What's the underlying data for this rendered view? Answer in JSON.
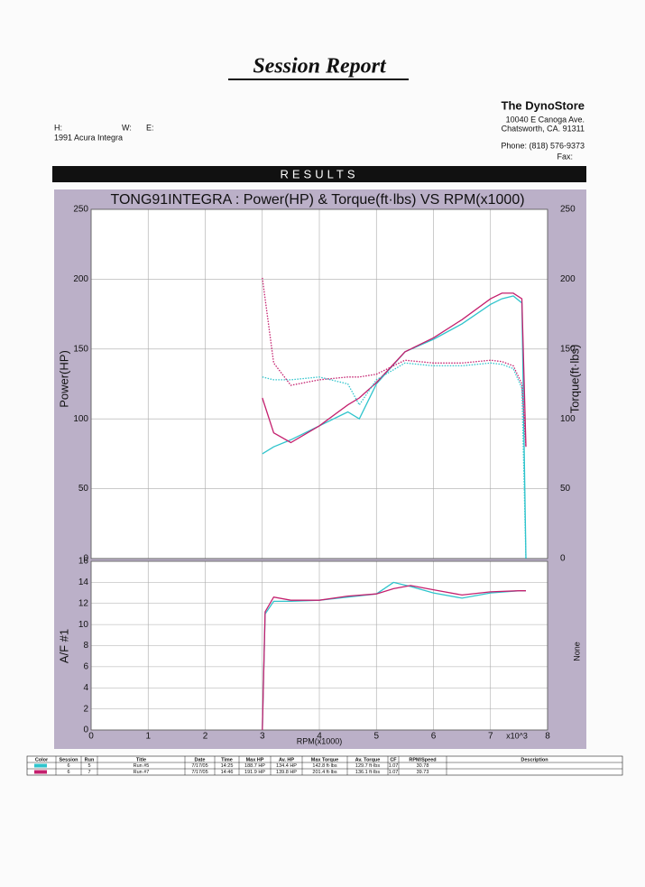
{
  "header": {
    "title": "Session Report",
    "customer": [
      "H:",
      "W:",
      "E:"
    ],
    "vehicle": "1991 Acura Integra"
  },
  "company": {
    "name": "The DynoStore",
    "address": [
      "10040 E Canoga Ave.",
      "Chatsworth, CA. 91311"
    ],
    "phone": "Phone: (818) 576-9373",
    "fax": "Fax:"
  },
  "results_title": "RESULTS",
  "chart_data": [
    {
      "type": "line",
      "title": "TONG91INTEGRA : Power(HP) & Torque(ft·lbs) VS RPM(x1000)",
      "ylabel": "Power(HP)",
      "y2label": "Torque(ft·lbs)",
      "x": [
        3.0,
        3.2,
        3.5,
        4.0,
        4.5,
        4.7,
        5.0,
        5.5,
        6.0,
        6.5,
        7.0,
        7.2,
        7.4,
        7.55,
        7.62
      ],
      "xlim": [
        0,
        8
      ],
      "xticks": [
        0,
        1,
        2,
        3,
        4,
        5,
        6,
        7,
        8
      ],
      "xtick_labels": false,
      "ylim": [
        0,
        250
      ],
      "yticks": [
        0,
        50,
        100,
        150,
        200,
        250
      ],
      "y2lim": [
        0,
        250
      ],
      "y2ticks": [
        0,
        50,
        100,
        150,
        200,
        250
      ],
      "grid": true,
      "series": [
        {
          "color": "#2fc4cc",
          "line_style": "solid",
          "values": [
            75,
            80,
            85,
            95,
            105,
            100,
            125,
            148,
            157,
            168,
            182,
            186,
            188,
            183,
            0
          ]
        },
        {
          "color": "#c4206e",
          "line_style": "solid",
          "values": [
            115,
            90,
            83,
            95,
            110,
            115,
            126,
            148,
            158,
            171,
            186,
            190,
            190,
            186,
            80
          ]
        },
        {
          "color": "#2fc4cc",
          "line_style": "dotted",
          "axis": "y2",
          "values": [
            130,
            128,
            128,
            130,
            125,
            110,
            128,
            140,
            138,
            138,
            140,
            139,
            136,
            122,
            0
          ]
        },
        {
          "color": "#c4206e",
          "line_style": "dotted",
          "axis": "y2",
          "values": [
            201,
            140,
            124,
            128,
            130,
            130,
            132,
            142,
            140,
            140,
            142,
            141,
            138,
            125,
            80
          ]
        }
      ]
    },
    {
      "type": "line",
      "xlabel": "RPM(x1000)",
      "ylabel": "A/F #1",
      "y2label": "None",
      "annotation": "x10^3",
      "x": [
        3.0,
        3.05,
        3.2,
        3.5,
        4.0,
        4.5,
        5.0,
        5.3,
        5.6,
        6.0,
        6.5,
        7.0,
        7.5,
        7.62
      ],
      "xlim": [
        0,
        8
      ],
      "xticks": [
        0,
        1,
        2,
        3,
        4,
        5,
        6,
        7,
        8
      ],
      "xtick_labels": true,
      "ylim": [
        0,
        16
      ],
      "yticks": [
        0,
        2,
        4,
        6,
        8,
        10,
        12,
        14,
        16
      ],
      "grid": true,
      "series": [
        {
          "color": "#2fc4cc",
          "line_style": "solid",
          "values": [
            0,
            11,
            12.2,
            12.2,
            12.3,
            12.6,
            12.9,
            14.0,
            13.6,
            13.0,
            12.5,
            13.0,
            13.2,
            13.2
          ]
        },
        {
          "color": "#c4206e",
          "line_style": "solid",
          "values": [
            0,
            11.2,
            12.6,
            12.3,
            12.3,
            12.7,
            12.9,
            13.4,
            13.7,
            13.3,
            12.8,
            13.1,
            13.2,
            13.2
          ]
        }
      ]
    }
  ],
  "table": {
    "columns": [
      "Color",
      "Session",
      "Run",
      "Title",
      "Date",
      "Time",
      "Max HP",
      "Av. HP",
      "Max Torque",
      "Av. Torque",
      "CF",
      "RPM/Speed",
      "Description"
    ],
    "rows": [
      {
        "color": "#2fc4cc",
        "cells": [
          "6",
          "5",
          "Run #5",
          "7/17/05",
          "14:25",
          "188.7 HP",
          "134.4 HP",
          "142.8 ft·lbs",
          "129.7 ft·lbs",
          "1.07",
          "30.78"
        ]
      },
      {
        "color": "#c4206e",
        "cells": [
          "6",
          "7",
          "Run #7",
          "7/17/05",
          "14:46",
          "191.9 HP",
          "139.8 HP",
          "201.4 ft·lbs",
          "136.1 ft·lbs",
          "1.07",
          "39.73"
        ]
      }
    ]
  }
}
